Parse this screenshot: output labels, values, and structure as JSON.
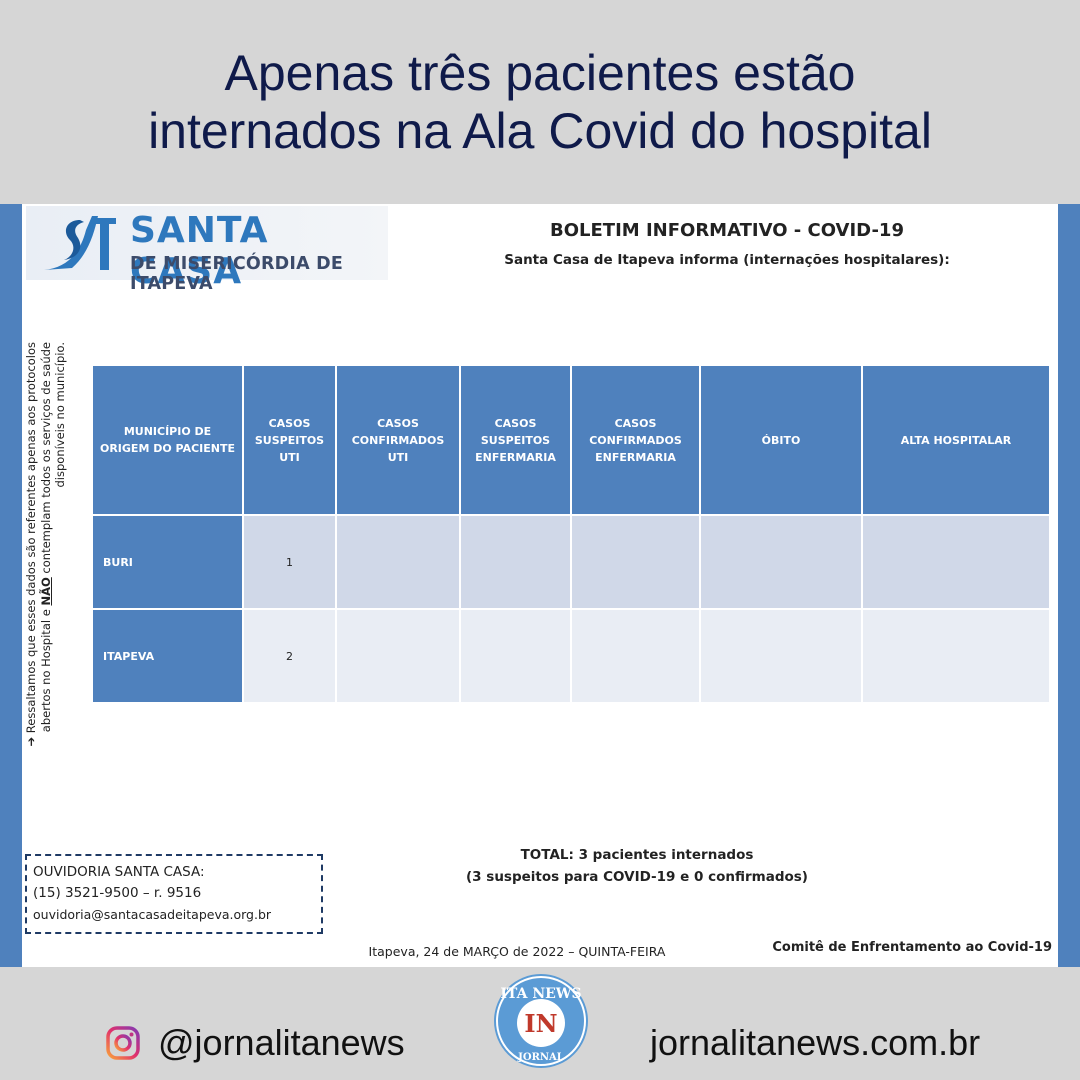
{
  "headline": {
    "line1": "Apenas três pacientes estão",
    "line2": "internados na Ala Covid do hospital"
  },
  "document": {
    "logo": {
      "title": "SANTA CASA",
      "subtitle": "DE MISERICÓRDIA DE ITAPEVA"
    },
    "title": "BOLETIM INFORMATIVO  - COVID-19",
    "subtitle": "Santa Casa de Itapeva informa (internações hospitalares):",
    "side_note": {
      "part1": "Ressaltamos que esses dados são referentes apenas aos protocolos abertos no Hospital  e ",
      "emph": "NÃO",
      "part2": " contemplam todos os serviços de saúde disponíveis no município."
    },
    "table": {
      "headers": [
        "MUNICÍPIO  DE ORIGEM  DO PACIENTE",
        "CASOS SUSPEITOS UTI",
        "CASOS CONFIRMADOS UTI",
        "CASOS SUSPEITOS ENFERMARIA",
        "CASOS CONFIRMADOS ENFERMARIA",
        "ÓBITO",
        "ALTA HOSPITALAR"
      ],
      "rows": [
        {
          "municipio": "BURI",
          "values": [
            "1",
            "",
            "",
            "",
            "",
            ""
          ]
        },
        {
          "municipio": "ITAPEVA",
          "values": [
            "2",
            "",
            "",
            "",
            "",
            ""
          ]
        }
      ]
    },
    "total": {
      "line1": "TOTAL: 3 pacientes internados",
      "line2": "(3 suspeitos para COVID-19 e 0 confirmados)"
    },
    "ouvidoria": {
      "title": "OUVIDORIA SANTA CASA:",
      "phone": "(15) 3521-9500 – r. 9516",
      "email": "ouvidoria@santacasadeitapeva.org.br"
    },
    "date": "Itapeva, 24 de MARÇO de 2022 – QUINTA-FEIRA",
    "committee": "Comitê de Enfrentamento ao Covid-19"
  },
  "footer": {
    "instagram": "@jornalitanews",
    "badge_top": "ITA NEWS",
    "badge_mid": "IN",
    "badge_bottom": "JORNAL",
    "website": "jornalitanews.com.br"
  },
  "colors": {
    "background": "#d6d6d6",
    "headline": "#0f1a4a",
    "table_header": "#4f81bd",
    "row_dark": "#d0d8e8",
    "row_light": "#e9edf4",
    "logo_blue": "#2e78bd"
  }
}
